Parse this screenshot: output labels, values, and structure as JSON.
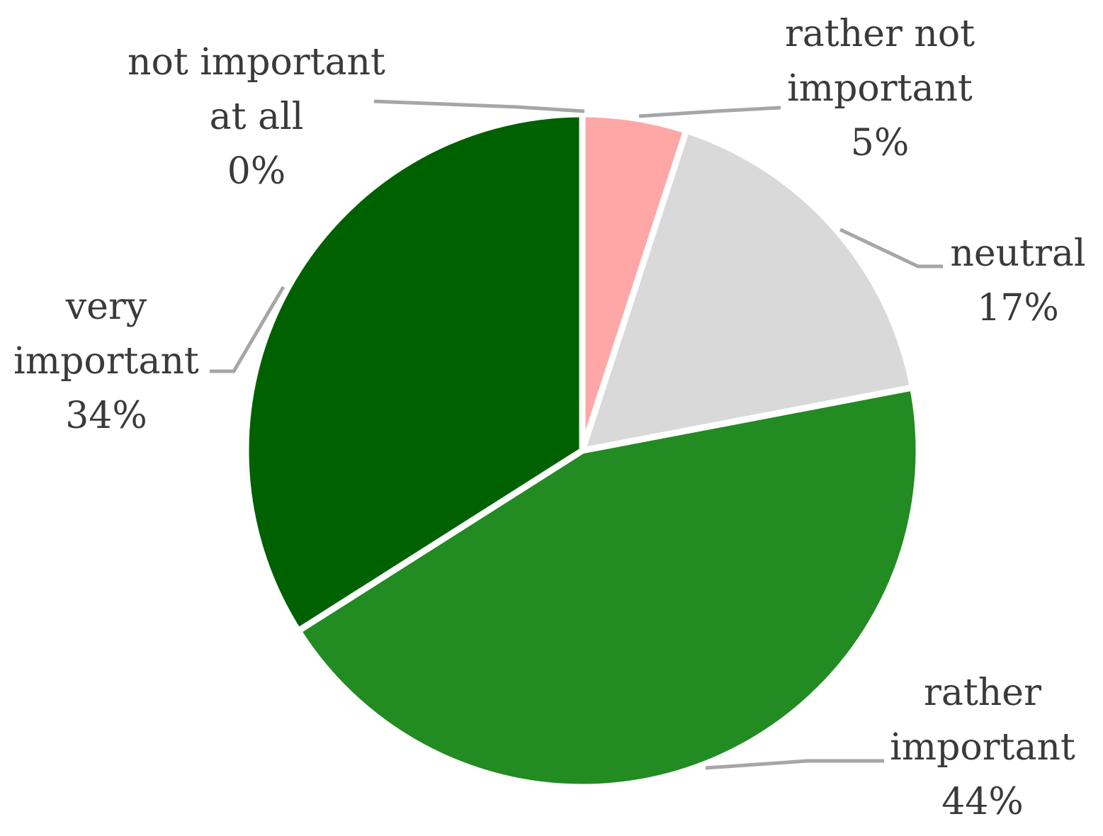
{
  "chart_data": {
    "type": "pie",
    "title": "",
    "start_angle_deg": 0,
    "direction": "clockwise",
    "slices": [
      {
        "label": [
          "not important",
          "at all"
        ],
        "value": 0,
        "pct_label": "0%",
        "color": "#c00000"
      },
      {
        "label": [
          "rather not",
          "important"
        ],
        "value": 5,
        "pct_label": "5%",
        "color": "#ffa7a7"
      },
      {
        "label": [
          "neutral"
        ],
        "value": 17,
        "pct_label": "17%",
        "color": "#d9d9d9"
      },
      {
        "label": [
          "rather",
          "important"
        ],
        "value": 44,
        "pct_label": "44%",
        "color": "#228b22"
      },
      {
        "label": [
          "very",
          "important"
        ],
        "value": 34,
        "pct_label": "34%",
        "color": "#006100"
      }
    ]
  }
}
